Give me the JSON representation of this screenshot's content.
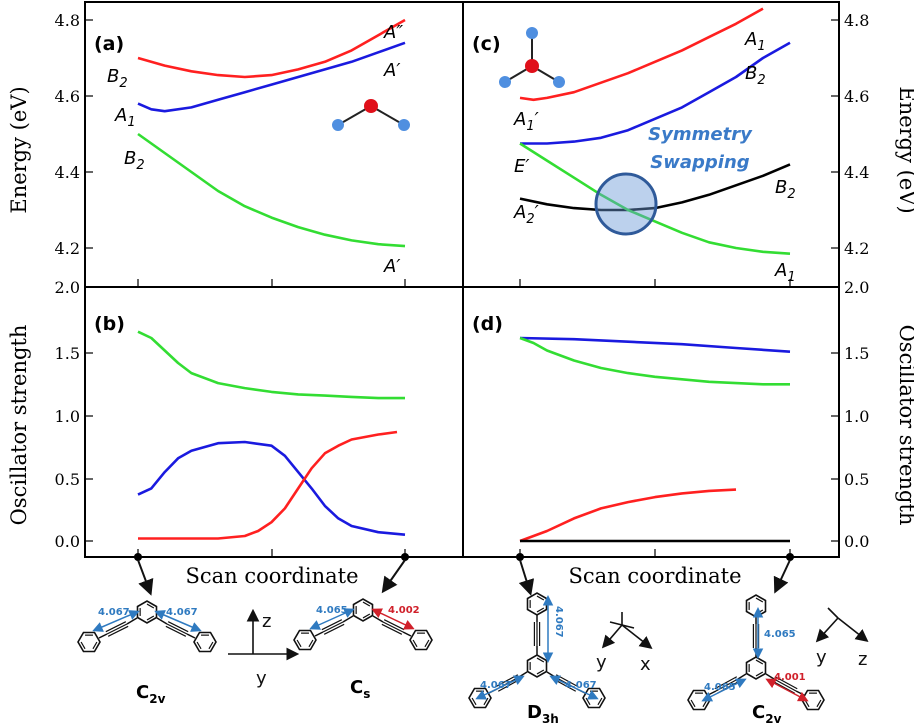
{
  "colors": {
    "red": "#ff2020",
    "blue": "#1a1adf",
    "green": "#33dd33",
    "black": "#000000",
    "mol_blue": "#4f8fe0",
    "mol_red": "#e0101a",
    "highlight": "#2f6fbf"
  },
  "left": {
    "xlabel": "Scan coordinate",
    "energy_ylabel": "Energy (eV)",
    "osc_ylabel": "Oscillator strength",
    "panel_a_tag": "(a)",
    "panel_b_tag": "(b)",
    "energy_ticks": [
      "4.8",
      "4.6",
      "4.4",
      "4.2",
      "2.0"
    ],
    "osc_ticks": [
      "1.5",
      "1.0",
      "0.5",
      "0.0"
    ],
    "state_labels": {
      "b2_red": [
        "B",
        "2"
      ],
      "a1_blue": [
        "A",
        "1"
      ],
      "b2_green": [
        "B",
        "2"
      ],
      "a2_red": [
        "A",
        "″"
      ],
      "a_blue": [
        "A",
        "′"
      ],
      "a_green": [
        "A",
        "′"
      ]
    },
    "molecule_names": {
      "c2v": [
        "C",
        "2v"
      ],
      "cs": [
        "C",
        "s"
      ]
    },
    "bond_labels": {
      "c2v_left": "4.067",
      "c2v_right": "4.067",
      "cs_left": "4.065",
      "cs_right": "4.002"
    },
    "axes": {
      "z": "z",
      "y": "y"
    }
  },
  "right": {
    "xlabel": "Scan coordinate",
    "energy_ylabel": "Energy (eV)",
    "osc_ylabel": "Oscillator strength",
    "panel_c_tag": "(c)",
    "panel_d_tag": "(d)",
    "energy_ticks": [
      "4.8",
      "4.6",
      "4.4",
      "4.2",
      "2.0"
    ],
    "osc_ticks": [
      "1.5",
      "1.0",
      "0.5",
      "0.0"
    ],
    "annotation": [
      "Symmetry",
      "Swapping"
    ],
    "state_labels": {
      "a1p": [
        "A",
        "1",
        "′"
      ],
      "ep": [
        "E",
        "′"
      ],
      "a2p": [
        "A",
        "2",
        "′"
      ],
      "a1_red": [
        "A",
        "1"
      ],
      "b2_blue": [
        "B",
        "2"
      ],
      "b2_black": [
        "B",
        "2"
      ],
      "a1_green": [
        "A",
        "1"
      ]
    },
    "molecule_names": {
      "d3h": [
        "D",
        "3h"
      ],
      "c2v": [
        "C",
        "2v"
      ]
    },
    "bond_labels": {
      "d3h_vert": "4.067",
      "d3h_left": "4.067",
      "d3h_right": "4.067",
      "c2v_vert": "4.065",
      "c2v_left": "4.065",
      "c2v_right": "4.001"
    },
    "axes": {
      "y": "y",
      "x": "x",
      "z": "z"
    }
  },
  "chart_data": [
    {
      "panel": "(a)",
      "type": "line",
      "xlabel": "",
      "ylabel": "Energy (eV)",
      "ylim": [
        4.15,
        4.8
      ],
      "xlim": [
        0,
        1
      ],
      "series": [
        {
          "color": "red",
          "x": [
            0,
            0.1,
            0.2,
            0.3,
            0.4,
            0.5,
            0.6,
            0.7,
            0.8,
            0.9,
            1.0
          ],
          "y": [
            4.7,
            4.68,
            4.665,
            4.655,
            4.65,
            4.655,
            4.67,
            4.69,
            4.72,
            4.76,
            4.8
          ]
        },
        {
          "color": "blue",
          "x": [
            0,
            0.05,
            0.1,
            0.2,
            0.3,
            0.4,
            0.5,
            0.6,
            0.7,
            0.8,
            0.9,
            1.0
          ],
          "y": [
            4.58,
            4.565,
            4.56,
            4.57,
            4.59,
            4.61,
            4.63,
            4.65,
            4.67,
            4.69,
            4.715,
            4.74
          ]
        },
        {
          "color": "green",
          "x": [
            0,
            0.1,
            0.2,
            0.3,
            0.4,
            0.5,
            0.6,
            0.7,
            0.8,
            0.9,
            1.0
          ],
          "y": [
            4.5,
            4.45,
            4.4,
            4.35,
            4.31,
            4.28,
            4.255,
            4.235,
            4.22,
            4.21,
            4.205
          ]
        }
      ]
    },
    {
      "panel": "(b)",
      "type": "line",
      "xlabel": "Scan coordinate",
      "ylabel": "Oscillator strength",
      "ylim": [
        -0.05,
        1.75
      ],
      "xlim": [
        0,
        1
      ],
      "series": [
        {
          "color": "green",
          "x": [
            0,
            0.05,
            0.1,
            0.15,
            0.2,
            0.3,
            0.4,
            0.5,
            0.6,
            0.7,
            0.8,
            0.9,
            1.0
          ],
          "y": [
            1.67,
            1.62,
            1.52,
            1.42,
            1.34,
            1.26,
            1.22,
            1.19,
            1.17,
            1.16,
            1.15,
            1.14,
            1.14
          ]
        },
        {
          "color": "blue",
          "x": [
            0,
            0.05,
            0.1,
            0.15,
            0.2,
            0.3,
            0.4,
            0.5,
            0.55,
            0.6,
            0.65,
            0.7,
            0.75,
            0.8,
            0.9,
            1.0
          ],
          "y": [
            0.37,
            0.42,
            0.55,
            0.66,
            0.72,
            0.78,
            0.79,
            0.76,
            0.68,
            0.55,
            0.42,
            0.28,
            0.18,
            0.12,
            0.07,
            0.05
          ]
        },
        {
          "color": "red",
          "x": [
            0,
            0.1,
            0.2,
            0.3,
            0.4,
            0.45,
            0.5,
            0.55,
            0.6,
            0.65,
            0.7,
            0.75,
            0.8,
            0.9,
            0.97
          ],
          "y": [
            0.02,
            0.02,
            0.02,
            0.02,
            0.04,
            0.08,
            0.15,
            0.26,
            0.42,
            0.58,
            0.7,
            0.76,
            0.81,
            0.85,
            0.87
          ]
        }
      ]
    },
    {
      "panel": "(c)",
      "type": "line",
      "xlabel": "",
      "ylabel": "Energy (eV)",
      "ylim": [
        4.15,
        4.8
      ],
      "xlim": [
        0,
        1
      ],
      "series": [
        {
          "color": "red",
          "x": [
            0,
            0.05,
            0.1,
            0.2,
            0.3,
            0.4,
            0.5,
            0.6,
            0.7,
            0.8,
            0.9
          ],
          "y": [
            4.595,
            4.59,
            4.595,
            4.61,
            4.635,
            4.66,
            4.69,
            4.72,
            4.755,
            4.79,
            4.83
          ]
        },
        {
          "color": "blue",
          "x": [
            0,
            0.1,
            0.2,
            0.3,
            0.4,
            0.5,
            0.6,
            0.7,
            0.8,
            0.9,
            1.0
          ],
          "y": [
            4.475,
            4.475,
            4.48,
            4.49,
            4.51,
            4.54,
            4.57,
            4.61,
            4.65,
            4.7,
            4.74
          ]
        },
        {
          "color": "black",
          "x": [
            0,
            0.1,
            0.2,
            0.3,
            0.4,
            0.5,
            0.6,
            0.7,
            0.8,
            0.9,
            1.0
          ],
          "y": [
            4.33,
            4.315,
            4.305,
            4.3,
            4.3,
            4.305,
            4.32,
            4.34,
            4.365,
            4.39,
            4.42
          ]
        },
        {
          "color": "green",
          "x": [
            0,
            0.1,
            0.2,
            0.3,
            0.4,
            0.5,
            0.6,
            0.7,
            0.8,
            0.9,
            1.0
          ],
          "y": [
            4.475,
            4.43,
            4.385,
            4.34,
            4.3,
            4.27,
            4.24,
            4.215,
            4.2,
            4.19,
            4.185
          ]
        }
      ]
    },
    {
      "panel": "(d)",
      "type": "line",
      "xlabel": "Scan coordinate",
      "ylabel": "Oscillator strength",
      "ylim": [
        -0.05,
        1.75
      ],
      "xlim": [
        0,
        1
      ],
      "series": [
        {
          "color": "blue",
          "x": [
            0,
            0.2,
            0.4,
            0.6,
            0.8,
            1.0
          ],
          "y": [
            1.62,
            1.61,
            1.59,
            1.57,
            1.54,
            1.51
          ]
        },
        {
          "color": "green",
          "x": [
            0,
            0.05,
            0.1,
            0.2,
            0.3,
            0.4,
            0.5,
            0.6,
            0.7,
            0.8,
            0.9,
            1.0
          ],
          "y": [
            1.62,
            1.58,
            1.52,
            1.44,
            1.38,
            1.34,
            1.31,
            1.29,
            1.27,
            1.26,
            1.25,
            1.25
          ]
        },
        {
          "color": "red",
          "x": [
            0,
            0.1,
            0.2,
            0.3,
            0.4,
            0.5,
            0.6,
            0.7,
            0.8
          ],
          "y": [
            0.0,
            0.08,
            0.18,
            0.26,
            0.31,
            0.35,
            0.38,
            0.4,
            0.41
          ]
        },
        {
          "color": "black",
          "x": [
            0,
            1.0
          ],
          "y": [
            0.0,
            0.0
          ]
        }
      ]
    }
  ]
}
